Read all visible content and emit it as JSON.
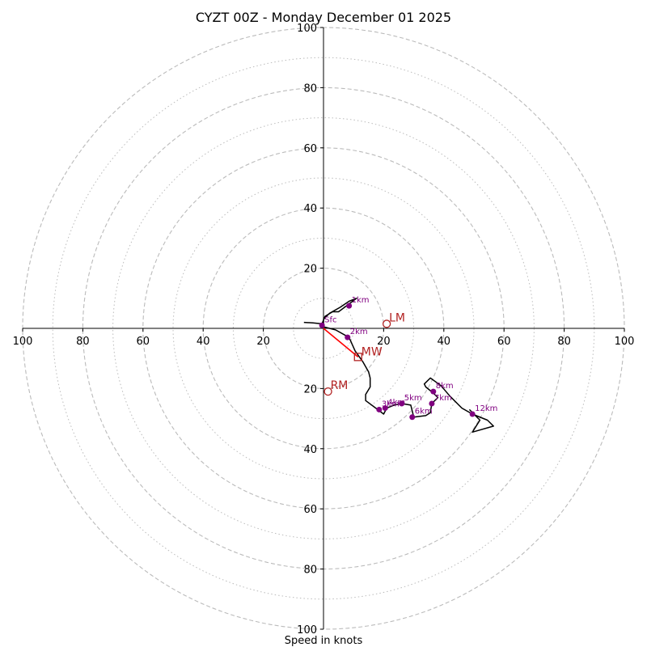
{
  "chart_data": {
    "type": "hodograph",
    "title": "CYZT 00Z - Monday December 01 2025",
    "xlabel": "Speed in knots",
    "units": "knots",
    "range": [
      -100,
      100
    ],
    "dashed_rings": [
      20,
      40,
      60,
      80,
      100
    ],
    "dotted_rings": [
      10,
      30,
      50,
      70,
      90
    ],
    "x_ticks": [
      {
        "value": -100,
        "label": "100"
      },
      {
        "value": -80,
        "label": "80"
      },
      {
        "value": -60,
        "label": "60"
      },
      {
        "value": -40,
        "label": "40"
      },
      {
        "value": -20,
        "label": "20"
      },
      {
        "value": 20,
        "label": "20"
      },
      {
        "value": 40,
        "label": "40"
      },
      {
        "value": 60,
        "label": "60"
      },
      {
        "value": 80,
        "label": "80"
      },
      {
        "value": 100,
        "label": "100"
      }
    ],
    "y_ticks": [
      {
        "value": 100,
        "label": "100"
      },
      {
        "value": 80,
        "label": "80"
      },
      {
        "value": 60,
        "label": "60"
      },
      {
        "value": 40,
        "label": "40"
      },
      {
        "value": 20,
        "label": "20"
      },
      {
        "value": -20,
        "label": "20"
      },
      {
        "value": -40,
        "label": "40"
      },
      {
        "value": -60,
        "label": "60"
      },
      {
        "value": -80,
        "label": "80"
      },
      {
        "value": -100,
        "label": "100"
      }
    ],
    "trace": [
      [
        -6.5,
        2.0
      ],
      [
        -3.5,
        1.8
      ],
      [
        -0.5,
        1.5
      ],
      [
        0.5,
        4.0
      ],
      [
        3.0,
        5.5
      ],
      [
        5.0,
        5.5
      ],
      [
        9.0,
        8.5
      ],
      [
        11.0,
        10.0
      ],
      [
        8.5,
        9.0
      ],
      [
        5.5,
        7.0
      ],
      [
        2.0,
        5.0
      ],
      [
        0.0,
        3.0
      ],
      [
        0.0,
        0.5
      ],
      [
        4.0,
        -0.5
      ],
      [
        8.5,
        -3.0
      ],
      [
        10.5,
        -7.5
      ],
      [
        13.0,
        -11.0
      ],
      [
        15.0,
        -14.5
      ],
      [
        15.5,
        -16.5
      ],
      [
        15.5,
        -19.5
      ],
      [
        14.0,
        -22.0
      ],
      [
        14.0,
        -24.0
      ],
      [
        18.0,
        -27.0
      ],
      [
        20.0,
        -28.5
      ],
      [
        21.0,
        -26.5
      ],
      [
        23.5,
        -25.5
      ],
      [
        26.0,
        -25.0
      ],
      [
        29.0,
        -25.5
      ],
      [
        30.0,
        -29.5
      ],
      [
        34.0,
        -29.0
      ],
      [
        35.5,
        -28.0
      ],
      [
        36.0,
        -25.0
      ],
      [
        38.0,
        -23.0
      ],
      [
        36.5,
        -21.5
      ],
      [
        34.0,
        -19.5
      ],
      [
        33.5,
        -18.5
      ],
      [
        35.5,
        -16.5
      ],
      [
        39.0,
        -19.0
      ],
      [
        42.0,
        -22.5
      ],
      [
        46.0,
        -26.5
      ],
      [
        49.5,
        -28.5
      ],
      [
        54.5,
        -30.5
      ],
      [
        56.5,
        -32.5
      ],
      [
        49.5,
        -34.5
      ],
      [
        52.0,
        -30.5
      ],
      [
        48.5,
        -27.0
      ]
    ],
    "levels": [
      {
        "label": "Sfc",
        "u": -0.5,
        "v": 1.0
      },
      {
        "label": "1km",
        "u": 8.5,
        "v": 7.5
      },
      {
        "label": "2km",
        "u": 8.0,
        "v": -3.0
      },
      {
        "label": "3km",
        "u": 18.5,
        "v": -27.0
      },
      {
        "label": "4km",
        "u": 20.5,
        "v": -26.5
      },
      {
        "label": "5km",
        "u": 26.0,
        "v": -25.0
      },
      {
        "label": "6km",
        "u": 29.5,
        "v": -29.5
      },
      {
        "label": "7km",
        "u": 36.0,
        "v": -25.0
      },
      {
        "label": "8km",
        "u": 36.5,
        "v": -21.0
      },
      {
        "label": "12km",
        "u": 49.5,
        "v": -28.5
      }
    ],
    "storm_motion": {
      "LM": {
        "label": "LM",
        "u": 21.0,
        "v": 1.5
      },
      "RM": {
        "label": "RM",
        "u": 1.5,
        "v": -21.0
      },
      "MW": {
        "label": "MW",
        "u": 11.5,
        "v": -9.5
      }
    },
    "colors": {
      "trace": "#000000",
      "levels": "#800080",
      "storm_marker": "#b22222",
      "mean_wind_vector": "#ff0000",
      "rings": "#bbbbbb"
    }
  }
}
